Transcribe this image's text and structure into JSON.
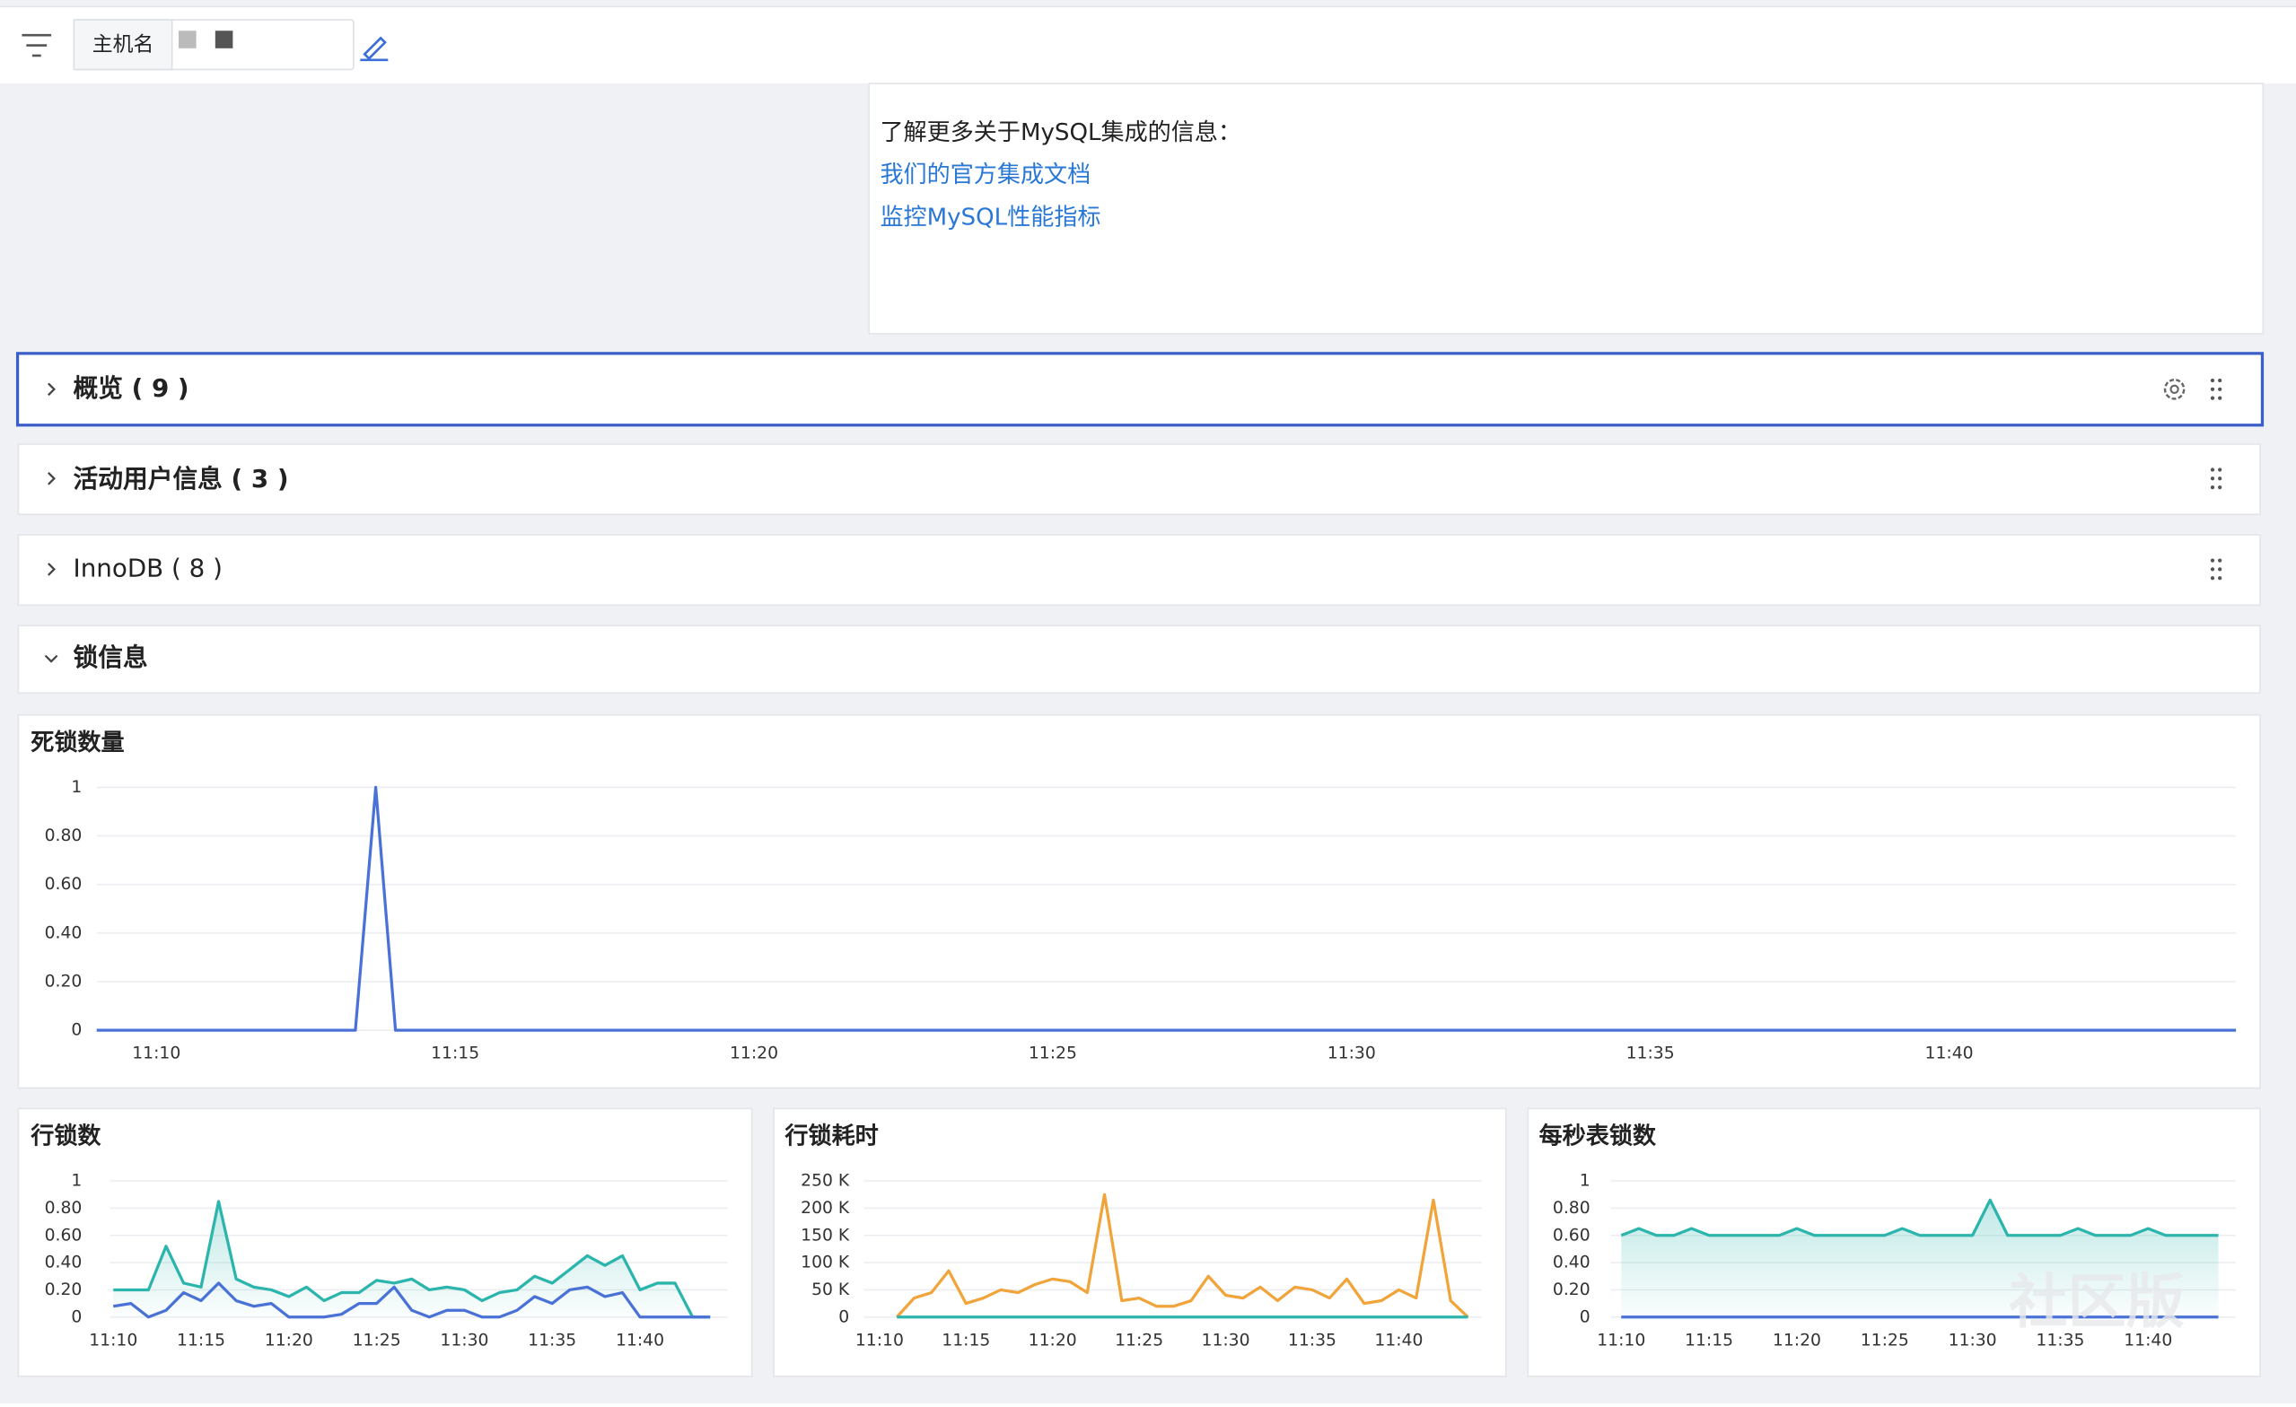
{
  "toolbar": {
    "host_label": "主机名"
  },
  "info": {
    "text": "了解更多关于MySQL集成的信息：",
    "links": [
      "我们的官方集成文档",
      "监控MySQL性能指标"
    ]
  },
  "sections": [
    {
      "title": "概览 ( 9 )"
    },
    {
      "title": "活动用户信息 ( 3 )"
    },
    {
      "title": "InnoDB ( 8 )"
    },
    {
      "title": "锁信息"
    }
  ],
  "watermark": "社区版",
  "charts": [
    {
      "type": "line",
      "title": "死锁数量",
      "xlim": [
        9,
        44.8
      ],
      "ylim": [
        0,
        1
      ],
      "xticks": [
        {
          "value": 10,
          "label": "11:10"
        },
        {
          "value": 15,
          "label": "11:15"
        },
        {
          "value": 20,
          "label": "11:20"
        },
        {
          "value": 25,
          "label": "11:25"
        },
        {
          "value": 30,
          "label": "11:30"
        },
        {
          "value": 35,
          "label": "11:35"
        },
        {
          "value": 40,
          "label": "11:40"
        }
      ],
      "yticks": [
        0,
        {
          "value": 0.2,
          "label": "0.20"
        },
        {
          "value": 0.4,
          "label": "0.40"
        },
        {
          "value": 0.6,
          "label": "0.60"
        },
        {
          "value": 0.8,
          "label": "0.80"
        },
        1
      ],
      "grid": true,
      "x": [
        9,
        13.33,
        13.67,
        14,
        44.8
      ],
      "series": [
        {
          "color": "#4a72d6",
          "values": [
            0,
            0,
            1,
            0,
            0
          ]
        }
      ]
    },
    {
      "type": "line",
      "title": "行锁数",
      "xlim": [
        9.8,
        45
      ],
      "ylim": [
        0,
        1
      ],
      "xticks": [
        {
          "value": 10,
          "label": "11:10"
        },
        {
          "value": 15,
          "label": "11:15"
        },
        {
          "value": 20,
          "label": "11:20"
        },
        {
          "value": 25,
          "label": "11:25"
        },
        {
          "value": 30,
          "label": "11:30"
        },
        {
          "value": 35,
          "label": "11:35"
        },
        {
          "value": 40,
          "label": "11:40"
        }
      ],
      "yticks": [
        0,
        {
          "value": 0.2,
          "label": "0.20"
        },
        {
          "value": 0.4,
          "label": "0.40"
        },
        {
          "value": 0.6,
          "label": "0.60"
        },
        {
          "value": 0.8,
          "label": "0.80"
        },
        1
      ],
      "grid": true,
      "x": [
        10,
        11,
        12,
        13,
        14,
        15,
        16,
        17,
        18,
        19,
        20,
        21,
        22,
        23,
        24,
        25,
        26,
        27,
        28,
        29,
        30,
        31,
        32,
        33,
        34,
        35,
        36,
        37,
        38,
        39,
        40,
        41,
        42,
        43,
        44
      ],
      "series": [
        {
          "color": "#2bb5ac",
          "area": true,
          "values": [
            0.2,
            0.2,
            0.2,
            0.52,
            0.25,
            0.22,
            0.85,
            0.28,
            0.22,
            0.2,
            0.15,
            0.22,
            0.12,
            0.18,
            0.18,
            0.27,
            0.25,
            0.28,
            0.2,
            0.22,
            0.2,
            0.12,
            0.18,
            0.2,
            0.3,
            0.25,
            0.35,
            0.45,
            0.38,
            0.45,
            0.2,
            0.25,
            0.25,
            0,
            0
          ]
        },
        {
          "color": "#4a72d6",
          "values": [
            0.08,
            0.1,
            0,
            0.05,
            0.18,
            0.12,
            0.25,
            0.12,
            0.08,
            0.1,
            0,
            0,
            0,
            0.02,
            0.1,
            0.1,
            0.22,
            0.05,
            0,
            0.05,
            0.05,
            0,
            0,
            0.05,
            0.15,
            0.1,
            0.2,
            0.22,
            0.15,
            0.18,
            0,
            0,
            0,
            0,
            0
          ]
        }
      ]
    },
    {
      "type": "line",
      "title": "行锁耗时",
      "xlim": [
        9.1,
        44.8
      ],
      "ylim": [
        0,
        250000
      ],
      "xticks": [
        {
          "value": 10,
          "label": "11:10"
        },
        {
          "value": 15,
          "label": "11:15"
        },
        {
          "value": 20,
          "label": "11:20"
        },
        {
          "value": 25,
          "label": "11:25"
        },
        {
          "value": 30,
          "label": "11:30"
        },
        {
          "value": 35,
          "label": "11:35"
        },
        {
          "value": 40,
          "label": "11:40"
        }
      ],
      "yticks": [
        0,
        {
          "value": 50000,
          "label": "50 K"
        },
        {
          "value": 100000,
          "label": "100 K"
        },
        {
          "value": 150000,
          "label": "150 K"
        },
        {
          "value": 200000,
          "label": "200 K"
        },
        {
          "value": 250000,
          "label": "250 K"
        }
      ],
      "grid": true,
      "x": [
        11,
        12,
        13,
        14,
        15,
        16,
        17,
        18,
        19,
        20,
        21,
        22,
        23,
        24,
        25,
        26,
        27,
        28,
        29,
        30,
        31,
        32,
        33,
        34,
        35,
        36,
        37,
        38,
        39,
        40,
        41,
        42,
        43,
        44
      ],
      "series": [
        {
          "color": "#f0a43a",
          "values": [
            0,
            35000,
            45000,
            85000,
            25000,
            35000,
            50000,
            45000,
            60000,
            70000,
            65000,
            45000,
            225000,
            30000,
            35000,
            20000,
            20000,
            30000,
            75000,
            40000,
            35000,
            55000,
            30000,
            55000,
            50000,
            35000,
            70000,
            25000,
            30000,
            50000,
            35000,
            215000,
            30000,
            0
          ]
        },
        {
          "color": "#2bb5ac",
          "values": [
            0,
            0,
            0,
            0,
            0,
            0,
            0,
            0,
            0,
            0,
            0,
            0,
            0,
            0,
            0,
            0,
            0,
            0,
            0,
            0,
            0,
            0,
            0,
            0,
            0,
            0,
            0,
            0,
            0,
            0,
            0,
            0,
            0,
            0
          ]
        }
      ]
    },
    {
      "type": "line",
      "title": "每秒表锁数",
      "xlim": [
        9.4,
        45
      ],
      "ylim": [
        0,
        1
      ],
      "xticks": [
        {
          "value": 10,
          "label": "11:10"
        },
        {
          "value": 15,
          "label": "11:15"
        },
        {
          "value": 20,
          "label": "11:20"
        },
        {
          "value": 25,
          "label": "11:25"
        },
        {
          "value": 30,
          "label": "11:30"
        },
        {
          "value": 35,
          "label": "11:35"
        },
        {
          "value": 40,
          "label": "11:40"
        }
      ],
      "yticks": [
        0,
        {
          "value": 0.2,
          "label": "0.20"
        },
        {
          "value": 0.4,
          "label": "0.40"
        },
        {
          "value": 0.6,
          "label": "0.60"
        },
        {
          "value": 0.8,
          "label": "0.80"
        },
        1
      ],
      "grid": true,
      "x": [
        10,
        11,
        12,
        13,
        14,
        15,
        16,
        17,
        18,
        19,
        20,
        21,
        22,
        23,
        24,
        25,
        26,
        27,
        28,
        29,
        30,
        31,
        32,
        33,
        34,
        35,
        36,
        37,
        38,
        39,
        40,
        41,
        42,
        43,
        44
      ],
      "series": [
        {
          "color": "#2bb5ac",
          "area": true,
          "values": [
            0.6,
            0.65,
            0.6,
            0.6,
            0.65,
            0.6,
            0.6,
            0.6,
            0.6,
            0.6,
            0.65,
            0.6,
            0.6,
            0.6,
            0.6,
            0.6,
            0.65,
            0.6,
            0.6,
            0.6,
            0.6,
            0.86,
            0.6,
            0.6,
            0.6,
            0.6,
            0.65,
            0.6,
            0.6,
            0.6,
            0.65,
            0.6,
            0.6,
            0.6,
            0.6
          ]
        },
        {
          "color": "#4a72d6",
          "values": [
            0,
            0,
            0,
            0,
            0,
            0,
            0,
            0,
            0,
            0,
            0,
            0,
            0,
            0,
            0,
            0,
            0,
            0,
            0,
            0,
            0,
            0,
            0,
            0,
            0,
            0,
            0,
            0,
            0,
            0,
            0,
            0,
            0,
            0,
            0
          ]
        }
      ]
    }
  ]
}
